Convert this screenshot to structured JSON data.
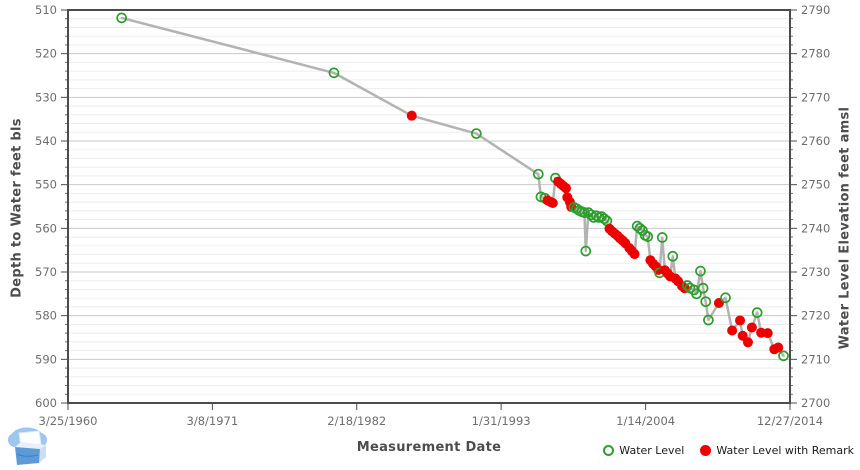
{
  "chart_data": {
    "type": "line",
    "title": "",
    "xlabel": "Measurement Date",
    "ylabel_left": "Depth to Water feet bls",
    "ylabel_right": "Water Level Elevation feet amsl",
    "x_domain": [
      1960.23,
      2014.99
    ],
    "x_ticks": [
      {
        "label": "3/25/1960",
        "year": 1960.23
      },
      {
        "label": "3/8/1971",
        "year": 1971.18
      },
      {
        "label": "2/18/1982",
        "year": 1982.13
      },
      {
        "label": "1/31/1993",
        "year": 1993.08
      },
      {
        "label": "1/14/2004",
        "year": 2004.04
      },
      {
        "label": "12/27/2014",
        "year": 2014.99
      }
    ],
    "y_left": {
      "min": 510,
      "max": 600,
      "major": 10,
      "minor": 2,
      "ticks": [
        "510",
        "520",
        "530",
        "540",
        "550",
        "560",
        "570",
        "580",
        "590",
        "600"
      ]
    },
    "y_right": {
      "min": 2790,
      "max": 2700,
      "ticks": [
        "2790",
        "2780",
        "2770",
        "2760",
        "2750",
        "2740",
        "2730",
        "2720",
        "2710",
        "2700"
      ]
    },
    "legend": [
      {
        "label": "Water Level",
        "marker": "open-circle",
        "color": "#2e9e2e"
      },
      {
        "label": "Water Level with Remark",
        "marker": "filled-circle",
        "color": "#ee0000"
      }
    ],
    "colors": {
      "green": "#2e9e2e",
      "red": "#ee0000",
      "line": "#b3b3b3",
      "grid_major": "#c9c9c9",
      "grid_minor": "#ededed",
      "axis": "#4b4b4b",
      "tick_label": "#6e6e6e",
      "axis_title": "#4d4d4d"
    },
    "points_format": [
      "decimal_year",
      "depth_ft_bls",
      "remark_flag"
    ],
    "points": [
      [
        1964.3,
        511.8,
        0
      ],
      [
        1980.4,
        524.4,
        0
      ],
      [
        1986.3,
        534.2,
        1
      ],
      [
        1991.2,
        538.3,
        0
      ],
      [
        1995.9,
        547.6,
        0
      ],
      [
        1996.1,
        552.8,
        0
      ],
      [
        1996.4,
        553.1,
        0
      ],
      [
        1996.6,
        553.6,
        1
      ],
      [
        1996.8,
        553.9,
        1
      ],
      [
        1997.0,
        554.2,
        1
      ],
      [
        1997.2,
        548.5,
        0
      ],
      [
        1997.4,
        549.3,
        1
      ],
      [
        1997.6,
        549.8,
        1
      ],
      [
        1997.8,
        550.3,
        1
      ],
      [
        1998.0,
        550.8,
        1
      ],
      [
        1998.1,
        552.9,
        1
      ],
      [
        1998.3,
        554.0,
        1
      ],
      [
        1998.4,
        555.1,
        1
      ],
      [
        1998.6,
        555.2,
        0
      ],
      [
        1998.8,
        555.5,
        0
      ],
      [
        1999.0,
        555.9,
        0
      ],
      [
        1999.2,
        556.2,
        0
      ],
      [
        1999.4,
        556.4,
        0
      ],
      [
        1999.5,
        565.2,
        0
      ],
      [
        1999.7,
        556.4,
        0
      ],
      [
        1999.9,
        556.9,
        0
      ],
      [
        2000.1,
        557.5,
        0
      ],
      [
        2000.3,
        557.1,
        0
      ],
      [
        2000.5,
        557.5,
        0
      ],
      [
        2000.7,
        557.3,
        0
      ],
      [
        2000.9,
        557.8,
        0
      ],
      [
        2001.1,
        558.3,
        0
      ],
      [
        2001.3,
        560.1,
        1
      ],
      [
        2001.5,
        560.7,
        1
      ],
      [
        2001.7,
        561.2,
        1
      ],
      [
        2001.9,
        561.7,
        1
      ],
      [
        2002.1,
        562.3,
        1
      ],
      [
        2002.3,
        562.8,
        1
      ],
      [
        2002.5,
        563.4,
        1
      ],
      [
        2002.8,
        564.5,
        1
      ],
      [
        2003.0,
        565.2,
        1
      ],
      [
        2003.2,
        565.9,
        1
      ],
      [
        2003.4,
        559.5,
        0
      ],
      [
        2003.6,
        560.0,
        0
      ],
      [
        2003.8,
        560.5,
        0
      ],
      [
        2004.0,
        561.6,
        0
      ],
      [
        2004.2,
        561.9,
        0
      ],
      [
        2004.4,
        567.3,
        1
      ],
      [
        2004.6,
        568.1,
        1
      ],
      [
        2004.8,
        568.7,
        1
      ],
      [
        2005.0,
        569.5,
        1
      ],
      [
        2005.1,
        570.2,
        0
      ],
      [
        2005.3,
        562.1,
        0
      ],
      [
        2005.5,
        569.6,
        1
      ],
      [
        2005.7,
        570.3,
        1
      ],
      [
        2005.9,
        571.0,
        1
      ],
      [
        2006.1,
        566.4,
        0
      ],
      [
        2006.3,
        571.5,
        1
      ],
      [
        2006.5,
        572.1,
        1
      ],
      [
        2006.8,
        573.2,
        1
      ],
      [
        2007.0,
        573.7,
        1
      ],
      [
        2007.2,
        573.1,
        0
      ],
      [
        2007.4,
        573.7,
        0
      ],
      [
        2007.7,
        574.1,
        0
      ],
      [
        2007.9,
        575.0,
        0
      ],
      [
        2008.2,
        569.8,
        0
      ],
      [
        2008.4,
        573.7,
        0
      ],
      [
        2008.6,
        576.8,
        0
      ],
      [
        2008.8,
        581.0,
        0
      ],
      [
        2009.6,
        577.1,
        1
      ],
      [
        2010.1,
        575.9,
        0
      ],
      [
        2010.6,
        583.4,
        1
      ],
      [
        2011.2,
        581.1,
        1
      ],
      [
        2011.4,
        584.6,
        1
      ],
      [
        2011.8,
        586.1,
        1
      ],
      [
        2012.1,
        582.7,
        1
      ],
      [
        2012.5,
        579.3,
        0
      ],
      [
        2012.8,
        583.9,
        1
      ],
      [
        2013.3,
        584.0,
        1
      ],
      [
        2013.8,
        587.7,
        1
      ],
      [
        2014.1,
        587.3,
        1
      ],
      [
        2014.5,
        589.2,
        0
      ]
    ]
  }
}
